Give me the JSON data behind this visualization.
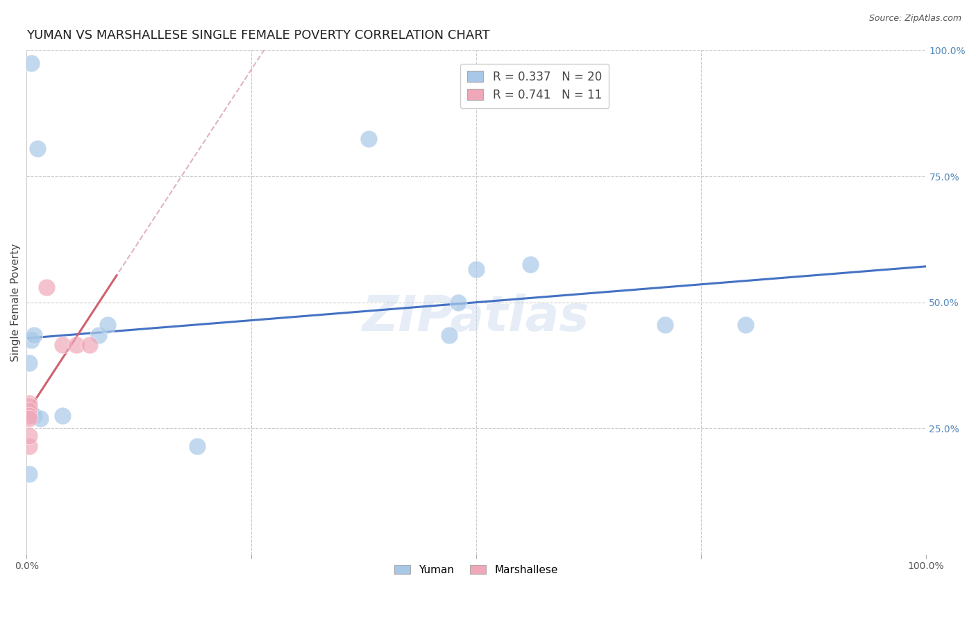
{
  "title": "YUMAN VS MARSHALLESE SINGLE FEMALE POVERTY CORRELATION CHART",
  "source": "Source: ZipAtlas.com",
  "ylabel": "Single Female Poverty",
  "watermark": "ZIPatlas",
  "legend_yuman": "Yuman",
  "legend_marshallese": "Marshallese",
  "yuman_R": 0.337,
  "yuman_N": 20,
  "marshallese_R": 0.741,
  "marshallese_N": 11,
  "yuman_points": [
    [
      0.005,
      0.975
    ],
    [
      0.012,
      0.805
    ],
    [
      0.005,
      0.425
    ],
    [
      0.008,
      0.435
    ],
    [
      0.08,
      0.435
    ],
    [
      0.09,
      0.455
    ],
    [
      0.38,
      0.825
    ],
    [
      0.47,
      0.435
    ],
    [
      0.48,
      0.5
    ],
    [
      0.5,
      0.565
    ],
    [
      0.56,
      0.575
    ],
    [
      0.71,
      0.455
    ],
    [
      0.8,
      0.455
    ],
    [
      0.005,
      0.28
    ],
    [
      0.008,
      0.275
    ],
    [
      0.015,
      0.27
    ],
    [
      0.04,
      0.275
    ],
    [
      0.19,
      0.215
    ],
    [
      0.003,
      0.16
    ],
    [
      0.003,
      0.38
    ]
  ],
  "marshallese_points": [
    [
      0.022,
      0.53
    ],
    [
      0.04,
      0.415
    ],
    [
      0.055,
      0.415
    ],
    [
      0.07,
      0.415
    ],
    [
      0.003,
      0.3
    ],
    [
      0.003,
      0.295
    ],
    [
      0.003,
      0.285
    ],
    [
      0.003,
      0.275
    ],
    [
      0.003,
      0.27
    ],
    [
      0.003,
      0.215
    ],
    [
      0.003,
      0.235
    ]
  ],
  "yuman_color": "#A8C8E8",
  "marshallese_color": "#F0A8B8",
  "yuman_line_color": "#4472C4",
  "marshallese_line_color": "#D06070",
  "marshallese_dash_color": "#D8A0B0",
  "background_color": "#FFFFFF",
  "grid_color": "#CCCCCC",
  "title_fontsize": 13,
  "axis_label_fontsize": 11,
  "tick_fontsize": 10,
  "source_fontsize": 9,
  "right_tick_color": "#5588BB",
  "xlim": [
    0.0,
    1.0
  ],
  "ylim": [
    0.0,
    1.0
  ]
}
